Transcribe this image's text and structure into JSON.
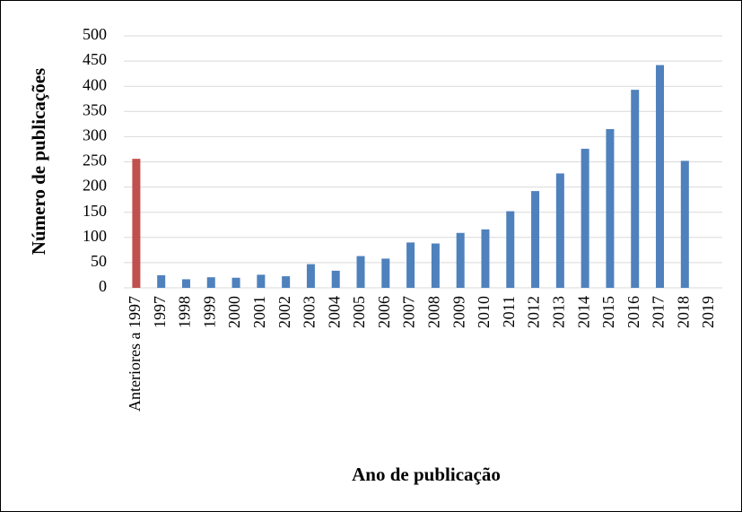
{
  "chart_data": {
    "type": "bar",
    "categories": [
      "Anteriores a 1997",
      "1997",
      "1998",
      "1999",
      "2000",
      "2001",
      "2002",
      "2003",
      "2004",
      "2005",
      "2006",
      "2007",
      "2008",
      "2009",
      "2010",
      "2011",
      "2012",
      "2013",
      "2014",
      "2015",
      "2016",
      "2017",
      "2018",
      "2019"
    ],
    "values": [
      256,
      25,
      17,
      21,
      20,
      26,
      23,
      47,
      34,
      63,
      58,
      90,
      88,
      109,
      116,
      152,
      192,
      227,
      276,
      315,
      393,
      442,
      252,
      0
    ],
    "colors": [
      "#c0504d",
      "#4f81bd",
      "#4f81bd",
      "#4f81bd",
      "#4f81bd",
      "#4f81bd",
      "#4f81bd",
      "#4f81bd",
      "#4f81bd",
      "#4f81bd",
      "#4f81bd",
      "#4f81bd",
      "#4f81bd",
      "#4f81bd",
      "#4f81bd",
      "#4f81bd",
      "#4f81bd",
      "#4f81bd",
      "#4f81bd",
      "#4f81bd",
      "#4f81bd",
      "#4f81bd",
      "#4f81bd",
      "#4f81bd"
    ],
    "x_label": "Ano de publicação",
    "y_label": "Número de publicações",
    "ylim": [
      0,
      500
    ],
    "yticks": [
      0,
      50,
      100,
      150,
      200,
      250,
      300,
      350,
      400,
      450,
      500
    ],
    "grid": true
  }
}
